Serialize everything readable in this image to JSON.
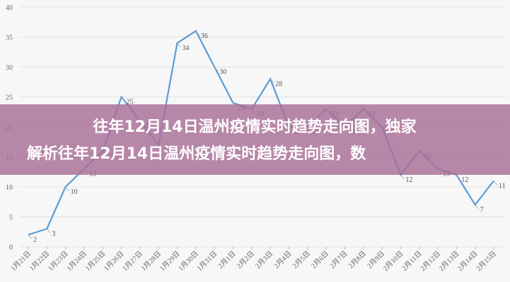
{
  "chart_data": {
    "type": "line",
    "title": [
      "往年12月14日温州疫情实时趋势走向图，独家",
      "解析往年12月14日温州疫情实时趋势走向图，数"
    ],
    "categories": [
      "1月21日",
      "1月22日",
      "1月23日",
      "1月24日",
      "1月25日",
      "1月26日",
      "1月27日",
      "1月28日",
      "1月29日",
      "1月30日",
      "1月31日",
      "2月1日",
      "2月2日",
      "2月3日",
      "2月4日",
      "2月5日",
      "2月6日",
      "2月7日",
      "2月8日",
      "2月9日",
      "2月10日",
      "2月11日",
      "2月12日",
      "2月13日",
      "2月14日",
      "2月15日"
    ],
    "values": [
      2,
      3,
      10,
      13,
      16,
      25,
      21,
      17,
      34,
      36,
      30,
      24,
      23,
      28,
      20,
      20,
      23,
      20,
      23,
      20,
      12,
      16,
      13,
      12,
      7,
      11
    ],
    "color": "#5b9bd5",
    "ylim": [
      0,
      40
    ],
    "yticks": [
      0,
      5,
      10,
      15,
      20,
      25,
      30,
      35,
      40
    ],
    "grid": true
  }
}
